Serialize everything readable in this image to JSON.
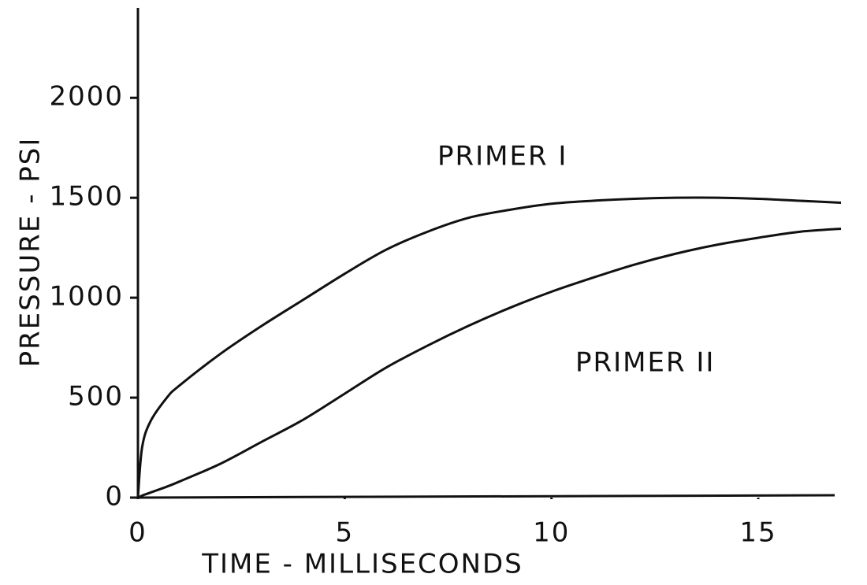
{
  "chart_data": {
    "type": "line",
    "xlabel": "TIME - MILLISECONDS",
    "ylabel": "PRESSURE - PSI",
    "x": [
      0,
      0.1,
      0.3,
      0.7,
      1,
      2,
      3,
      4,
      5,
      6,
      7,
      8,
      9,
      10,
      11,
      12,
      13,
      14,
      15,
      16,
      17
    ],
    "series": [
      {
        "name": "PRIMER I",
        "color": "#111111",
        "values": [
          0,
          250,
          380,
          500,
          560,
          720,
          860,
          990,
          1120,
          1240,
          1330,
          1400,
          1440,
          1470,
          1485,
          1495,
          1500,
          1500,
          1495,
          1485,
          1475
        ]
      },
      {
        "name": "PRIMER II",
        "color": "#111111",
        "values": [
          0,
          10,
          25,
          55,
          80,
          170,
          280,
          390,
          520,
          650,
          760,
          860,
          950,
          1030,
          1100,
          1165,
          1220,
          1265,
          1300,
          1330,
          1345
        ]
      }
    ],
    "xlim": [
      0,
      17
    ],
    "xticks": [
      0,
      5,
      10,
      15
    ],
    "ylim": [
      0,
      2450
    ],
    "yticks": [
      0,
      500,
      1000,
      1500,
      2000
    ]
  }
}
